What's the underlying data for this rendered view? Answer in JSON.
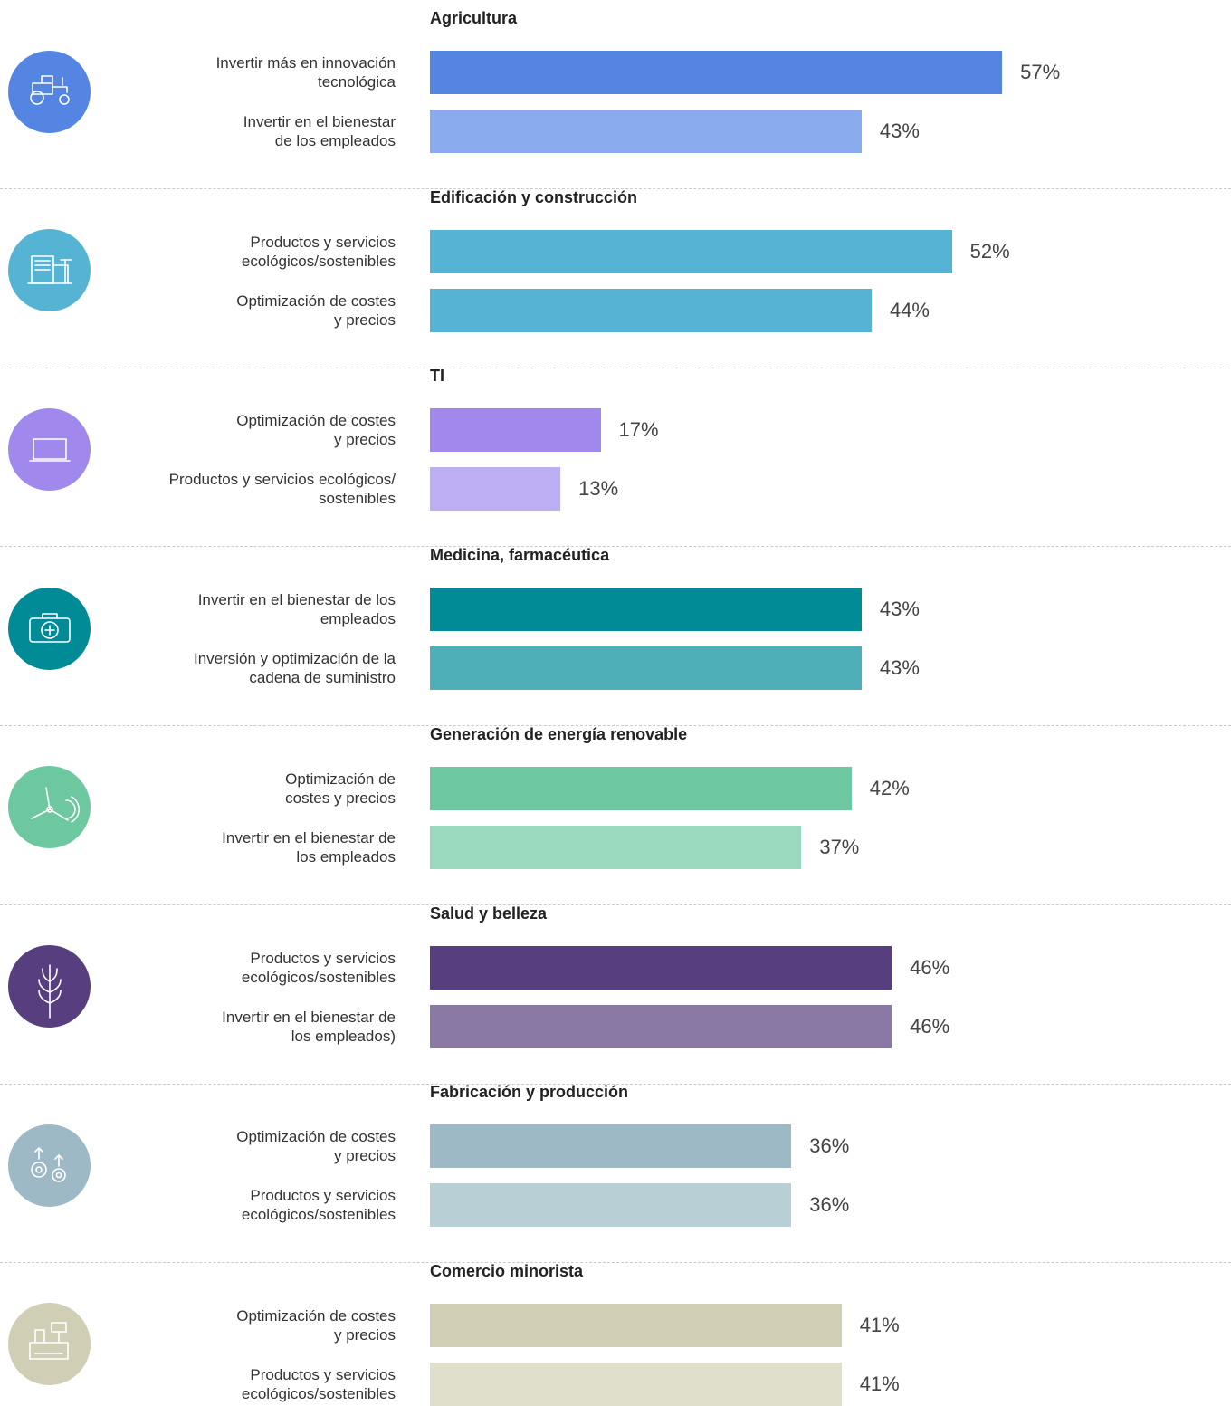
{
  "chart_data": [
    {
      "type": "bar",
      "title": "Agricultura",
      "categories": [
        "Invertir más en innovación\ntecnológica",
        "Invertir en el bienestar\nde los empleados"
      ],
      "values": [
        57,
        43
      ],
      "value_labels": [
        "57%",
        "43%"
      ],
      "colors": [
        "#5585e3",
        "#8aaaee"
      ]
    },
    {
      "type": "bar",
      "title": "Edificación y construcción",
      "categories": [
        "Productos y servicios\necológicos/sostenibles",
        "Optimización de costes\ny precios"
      ],
      "values": [
        52,
        44
      ],
      "value_labels": [
        "52%",
        "44%"
      ],
      "colors": [
        "#55b3d3",
        "#55b3d3"
      ]
    },
    {
      "type": "bar",
      "title": "TI",
      "categories": [
        "Optimización de costes\ny precios",
        "Productos y servicios ecológicos/\nsostenibles"
      ],
      "values": [
        17,
        13
      ],
      "value_labels": [
        "17%",
        "13%"
      ],
      "colors": [
        "#a088ec",
        "#bdadf2"
      ]
    },
    {
      "type": "bar",
      "title": "Medicina, farmacéutica",
      "categories": [
        "Invertir en el bienestar de los\nempleados",
        "Inversión y optimización de la\ncadena de suministro"
      ],
      "values": [
        43,
        43
      ],
      "value_labels": [
        "43%",
        "43%"
      ],
      "colors": [
        "#008b96",
        "#4eafb8"
      ]
    },
    {
      "type": "bar",
      "title": "Generación de energía renovable",
      "categories": [
        "Optimización de\ncostes y precios",
        "Invertir en el bienestar de\nlos empleados"
      ],
      "values": [
        42,
        37
      ],
      "value_labels": [
        "42%",
        "37%"
      ],
      "colors": [
        "#6dc8a0",
        "#9ad9bd"
      ]
    },
    {
      "type": "bar",
      "title": "Salud y belleza",
      "categories": [
        "Productos y servicios\necológicos/sostenibles",
        "Invertir en el bienestar de\nlos empleados)"
      ],
      "values": [
        46,
        46
      ],
      "value_labels": [
        "46%",
        "46%"
      ],
      "colors": [
        "#573f7f",
        "#8a78a5"
      ]
    },
    {
      "type": "bar",
      "title": "Fabricación y producción",
      "categories": [
        "Optimización de costes\ny precios",
        "Productos y servicios\necológicos/sostenibles"
      ],
      "values": [
        36,
        36
      ],
      "value_labels": [
        "36%",
        "36%"
      ],
      "colors": [
        "#9db9c5",
        "#b9cfd6"
      ]
    },
    {
      "type": "bar",
      "title": "Comercio minorista",
      "categories": [
        "Optimización de costes\ny precios",
        "Productos y servicios\necológicos/sostenibles"
      ],
      "values": [
        41,
        41
      ],
      "value_labels": [
        "41%",
        "41%"
      ],
      "colors": [
        "#d0cfb6",
        "#dfdfcc"
      ]
    }
  ]
}
